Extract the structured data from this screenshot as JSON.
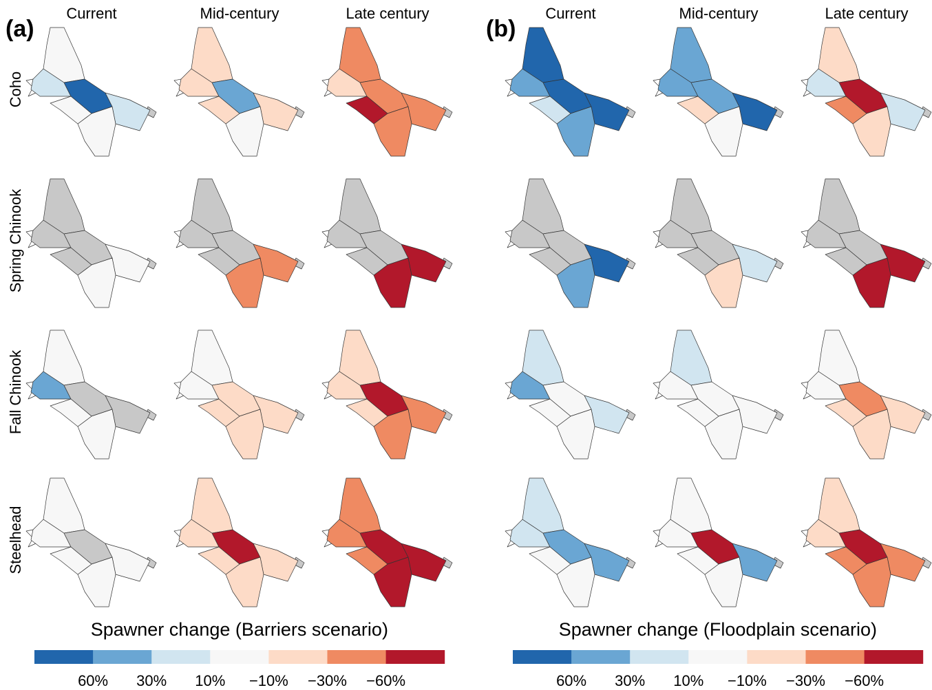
{
  "rows": [
    "Coho",
    "Spring Chinook",
    "Fall Chinook",
    "Steelhead"
  ],
  "panels": [
    {
      "letter": "(a)",
      "columns": [
        "Current",
        "Mid-century",
        "Late century"
      ],
      "legend": {
        "title": "Spawner change (Barriers scenario)",
        "labels": [
          "60%",
          "30%",
          "10%",
          "−10%",
          "−30%",
          "−60%"
        ],
        "colors": [
          "#2166ac",
          "#6aa6d3",
          "#d1e5f0",
          "#f7f7f7",
          "#fddbc7",
          "#ef8a62",
          "#b2182b"
        ]
      }
    },
    {
      "letter": "(b)",
      "columns": [
        "Current",
        "Mid-century",
        "Late century"
      ],
      "legend": {
        "title": "Spawner change (Floodplain scenario)",
        "labels": [
          "60%",
          "30%",
          "10%",
          "−10%",
          "−30%",
          "−60%"
        ],
        "colors": [
          "#2166ac",
          "#6aa6d3",
          "#d1e5f0",
          "#f7f7f7",
          "#fddbc7",
          "#ef8a62",
          "#b2182b"
        ]
      }
    }
  ]
}
